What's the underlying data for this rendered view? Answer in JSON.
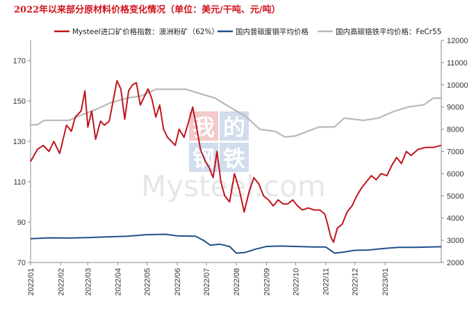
{
  "chart_data": {
    "type": "line",
    "title": "2022年以来部分原材料价格变化情况（单位：美元/干吨、元/吨）",
    "legend": {
      "placement": "top"
    },
    "grid": false,
    "x": {
      "ticks": [
        "2022/01",
        "2022/02",
        "2022/03",
        "2022/04",
        "2022/05",
        "2022/06",
        "2022/07",
        "2022/08",
        "2022/09",
        "2022/10",
        "2022/11",
        "2022/12",
        "2023/01"
      ],
      "range": [
        "2022/01/01",
        "2023/02/28"
      ]
    },
    "y_left": {
      "ticks": [
        "70",
        "90",
        "110",
        "130",
        "150",
        "170"
      ],
      "range": [
        70,
        180
      ]
    },
    "y_right": {
      "ticks": [
        "2000",
        "3000",
        "4000",
        "5000",
        "6000",
        "7000",
        "8000",
        "9000",
        "10000",
        "11000",
        "12000"
      ],
      "range": [
        2000,
        12000
      ]
    },
    "series": [
      {
        "name": "Mysteel进口矿价格指数：澳洲粉矿（62%）",
        "axis": "left",
        "color": "#c0141c",
        "points": [
          [
            "2022/01/01",
            120
          ],
          [
            "2022/01/08",
            126
          ],
          [
            "2022/01/14",
            128
          ],
          [
            "2022/01/20",
            125
          ],
          [
            "2022/01/25",
            130
          ],
          [
            "2022/01/31",
            124
          ],
          [
            "2022/02/07",
            138
          ],
          [
            "2022/02/12",
            135
          ],
          [
            "2022/02/16",
            142
          ],
          [
            "2022/02/22",
            145
          ],
          [
            "2022/02/26",
            155
          ],
          [
            "2022/03/01",
            137
          ],
          [
            "2022/03/05",
            145
          ],
          [
            "2022/03/09",
            131
          ],
          [
            "2022/03/14",
            140
          ],
          [
            "2022/03/18",
            138
          ],
          [
            "2022/03/23",
            140
          ],
          [
            "2022/03/27",
            150
          ],
          [
            "2022/03/31",
            160
          ],
          [
            "2022/04/04",
            156
          ],
          [
            "2022/04/08",
            141
          ],
          [
            "2022/04/12",
            155
          ],
          [
            "2022/04/16",
            158
          ],
          [
            "2022/04/20",
            159
          ],
          [
            "2022/04/24",
            148
          ],
          [
            "2022/04/28",
            152
          ],
          [
            "2022/05/02",
            156
          ],
          [
            "2022/05/06",
            151
          ],
          [
            "2022/05/10",
            142
          ],
          [
            "2022/05/14",
            148
          ],
          [
            "2022/05/18",
            136
          ],
          [
            "2022/05/22",
            132
          ],
          [
            "2022/05/26",
            130
          ],
          [
            "2022/05/30",
            128
          ],
          [
            "2022/06/03",
            136
          ],
          [
            "2022/06/08",
            132
          ],
          [
            "2022/06/13",
            140
          ],
          [
            "2022/06/17",
            147
          ],
          [
            "2022/06/21",
            137
          ],
          [
            "2022/06/25",
            126
          ],
          [
            "2022/06/30",
            120
          ],
          [
            "2022/07/04",
            117
          ],
          [
            "2022/07/08",
            112
          ],
          [
            "2022/07/12",
            125
          ],
          [
            "2022/07/16",
            110
          ],
          [
            "2022/07/20",
            103
          ],
          [
            "2022/07/25",
            100
          ],
          [
            "2022/07/30",
            114
          ],
          [
            "2022/08/04",
            106
          ],
          [
            "2022/08/09",
            95
          ],
          [
            "2022/08/14",
            105
          ],
          [
            "2022/08/19",
            112
          ],
          [
            "2022/08/24",
            109
          ],
          [
            "2022/08/29",
            103
          ],
          [
            "2022/09/03",
            101
          ],
          [
            "2022/09/08",
            98
          ],
          [
            "2022/09/13",
            101
          ],
          [
            "2022/09/18",
            99
          ],
          [
            "2022/09/23",
            99
          ],
          [
            "2022/09/28",
            101
          ],
          [
            "2022/10/03",
            98
          ],
          [
            "2022/10/08",
            96
          ],
          [
            "2022/10/14",
            97
          ],
          [
            "2022/10/20",
            96
          ],
          [
            "2022/10/26",
            96
          ],
          [
            "2022/10/31",
            94
          ],
          [
            "2022/11/03",
            89
          ],
          [
            "2022/11/06",
            83
          ],
          [
            "2022/11/09",
            80
          ],
          [
            "2022/11/13",
            87
          ],
          [
            "2022/11/18",
            89
          ],
          [
            "2022/11/23",
            95
          ],
          [
            "2022/11/28",
            98
          ],
          [
            "2022/12/03",
            103
          ],
          [
            "2022/12/08",
            107
          ],
          [
            "2022/12/13",
            110
          ],
          [
            "2022/12/18",
            113
          ],
          [
            "2022/12/23",
            111
          ],
          [
            "2022/12/28",
            114
          ],
          [
            "2023/01/03",
            113
          ],
          [
            "2023/01/08",
            118
          ],
          [
            "2023/01/13",
            122
          ],
          [
            "2023/01/18",
            119
          ],
          [
            "2023/01/23",
            125
          ],
          [
            "2023/01/28",
            123
          ],
          [
            "2023/02/04",
            126
          ],
          [
            "2023/02/12",
            127
          ],
          [
            "2023/02/20",
            127
          ],
          [
            "2023/02/28",
            128
          ]
        ]
      },
      {
        "name": "国内普碳废钢平均价格",
        "axis": "right",
        "color": "#1f4e8c",
        "points": [
          [
            "2022/01/01",
            3070
          ],
          [
            "2022/01/20",
            3110
          ],
          [
            "2022/02/10",
            3100
          ],
          [
            "2022/03/01",
            3120
          ],
          [
            "2022/03/25",
            3160
          ],
          [
            "2022/04/10",
            3180
          ],
          [
            "2022/04/30",
            3250
          ],
          [
            "2022/05/20",
            3270
          ],
          [
            "2022/06/01",
            3200
          ],
          [
            "2022/06/20",
            3180
          ],
          [
            "2022/06/28",
            3000
          ],
          [
            "2022/07/05",
            2780
          ],
          [
            "2022/07/15",
            2820
          ],
          [
            "2022/07/25",
            2720
          ],
          [
            "2022/08/01",
            2420
          ],
          [
            "2022/08/10",
            2450
          ],
          [
            "2022/08/20",
            2590
          ],
          [
            "2022/09/01",
            2720
          ],
          [
            "2022/09/15",
            2740
          ],
          [
            "2022/10/01",
            2720
          ],
          [
            "2022/10/20",
            2700
          ],
          [
            "2022/11/01",
            2700
          ],
          [
            "2022/11/10",
            2420
          ],
          [
            "2022/11/20",
            2470
          ],
          [
            "2022/12/01",
            2550
          ],
          [
            "2022/12/15",
            2560
          ],
          [
            "2022/12/31",
            2630
          ],
          [
            "2023/01/15",
            2680
          ],
          [
            "2023/02/01",
            2680
          ],
          [
            "2023/02/28",
            2710
          ]
        ]
      },
      {
        "name": "国内高碳铬铁平均价格：FeCr55",
        "axis": "right",
        "color": "#b8b8b8",
        "points": [
          [
            "2022/01/01",
            8200
          ],
          [
            "2022/01/08",
            8200
          ],
          [
            "2022/01/15",
            8400
          ],
          [
            "2022/02/10",
            8400
          ],
          [
            "2022/02/20",
            8600
          ],
          [
            "2022/03/10",
            8900
          ],
          [
            "2022/03/25",
            9200
          ],
          [
            "2022/04/10",
            9400
          ],
          [
            "2022/04/25",
            9500
          ],
          [
            "2022/05/10",
            9800
          ],
          [
            "2022/06/10",
            9800
          ],
          [
            "2022/06/25",
            9600
          ],
          [
            "2022/07/10",
            9400
          ],
          [
            "2022/07/25",
            9000
          ],
          [
            "2022/08/10",
            8600
          ],
          [
            "2022/08/25",
            8000
          ],
          [
            "2022/09/10",
            7900
          ],
          [
            "2022/09/20",
            7650
          ],
          [
            "2022/10/01",
            7700
          ],
          [
            "2022/10/10",
            7850
          ],
          [
            "2022/10/25",
            8100
          ],
          [
            "2022/11/10",
            8100
          ],
          [
            "2022/11/20",
            8500
          ],
          [
            "2022/12/10",
            8400
          ],
          [
            "2022/12/25",
            8500
          ],
          [
            "2023/01/10",
            8800
          ],
          [
            "2023/01/25",
            9000
          ],
          [
            "2023/02/10",
            9100
          ],
          [
            "2023/02/20",
            9400
          ],
          [
            "2023/02/28",
            9400
          ]
        ]
      }
    ]
  },
  "watermark": {
    "cn_chars": [
      "我",
      "的",
      "钢",
      "铁"
    ],
    "brand": "Mysteel.com"
  }
}
